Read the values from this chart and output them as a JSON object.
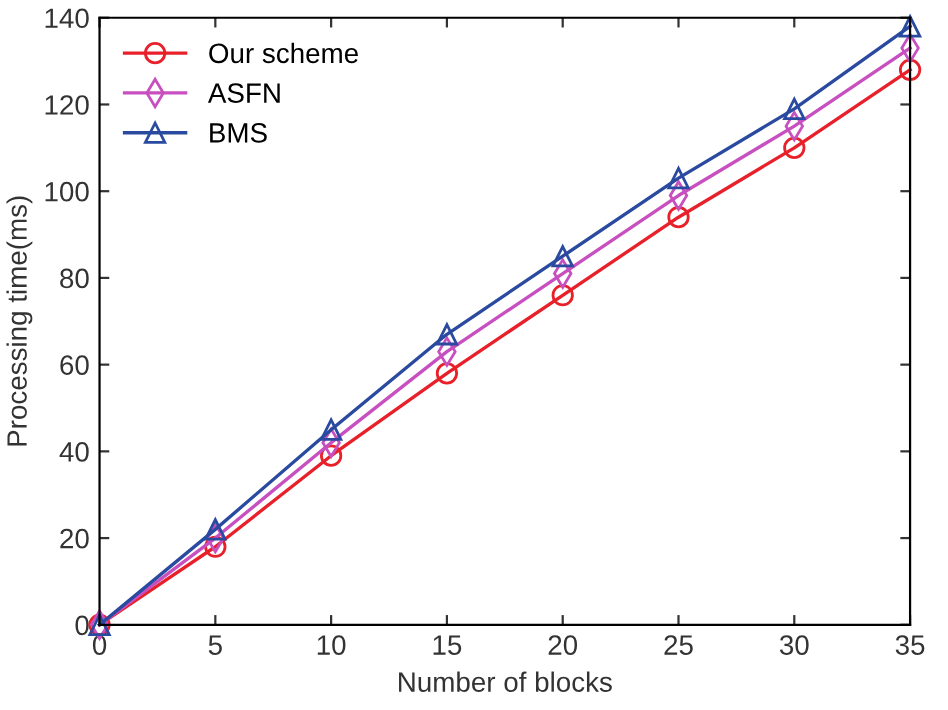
{
  "chart_data": {
    "type": "line",
    "xlabel": "Number of blocks",
    "ylabel": "Processing time(ms)",
    "x": [
      0,
      5,
      10,
      15,
      20,
      25,
      30,
      35
    ],
    "series": [
      {
        "name": "Our scheme",
        "color": "#e8202a",
        "marker": "circle",
        "values": [
          0,
          18,
          39,
          58,
          76,
          94,
          110,
          128
        ]
      },
      {
        "name": "ASFN",
        "color": "#c84fc0",
        "marker": "diamond",
        "values": [
          0,
          20,
          42,
          63,
          81,
          99,
          115,
          133
        ]
      },
      {
        "name": "BMS",
        "color": "#2a4aa0",
        "marker": "triangle",
        "values": [
          0,
          22,
          45,
          67,
          85,
          103,
          119,
          138
        ]
      }
    ],
    "xlim": [
      0,
      35
    ],
    "xticks": [
      0,
      5,
      10,
      15,
      20,
      25,
      30,
      35
    ],
    "ylim": [
      0,
      140
    ],
    "yticks": [
      0,
      20,
      40,
      60,
      80,
      100,
      120,
      140
    ],
    "grid": false,
    "legend": "top left",
    "line_style": "solid"
  }
}
